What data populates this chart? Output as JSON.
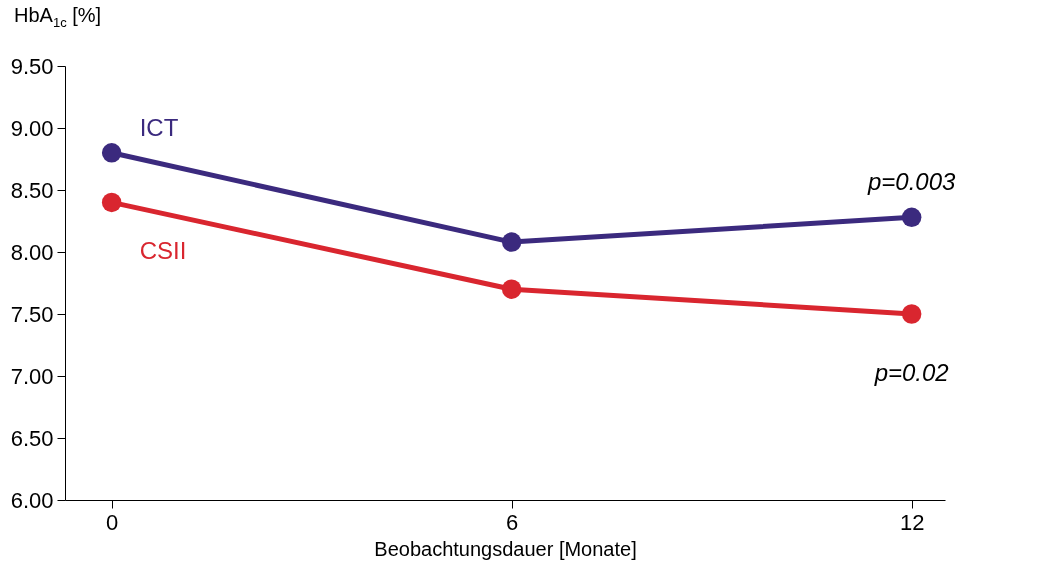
{
  "chart_data": {
    "type": "line",
    "ylabel": "HbA$_{1c}$ [%]",
    "xlabel": "Beobachtungsdauer [Monate]",
    "x": [
      0,
      6,
      12
    ],
    "series": [
      {
        "name": "ICT",
        "color": "#3b2a7e",
        "values": [
          8.8,
          8.08,
          8.28
        ]
      },
      {
        "name": "CSII",
        "color": "#d9262f",
        "values": [
          8.4,
          7.7,
          7.5
        ]
      }
    ],
    "xlim": [
      -0.7,
      12.5
    ],
    "xticks": [
      0,
      6,
      12
    ],
    "ylim": [
      6.0,
      9.5
    ],
    "yticks": [
      {
        "value": 6.0,
        "label": "6.00"
      },
      {
        "value": 6.5,
        "label": "6.50"
      },
      {
        "value": 7.0,
        "label": "7.00"
      },
      {
        "value": 7.5,
        "label": "7.50"
      },
      {
        "value": 8.0,
        "label": "8.00"
      },
      {
        "value": 8.5,
        "label": "8.50"
      },
      {
        "value": 9.0,
        "label": "9.00"
      },
      {
        "value": 9.5,
        "label": "9.50"
      }
    ],
    "annotations": [
      "p=0.003",
      "p=0.02"
    ],
    "marker": "circle",
    "line_style": "solid",
    "grid": false,
    "legend": false
  }
}
